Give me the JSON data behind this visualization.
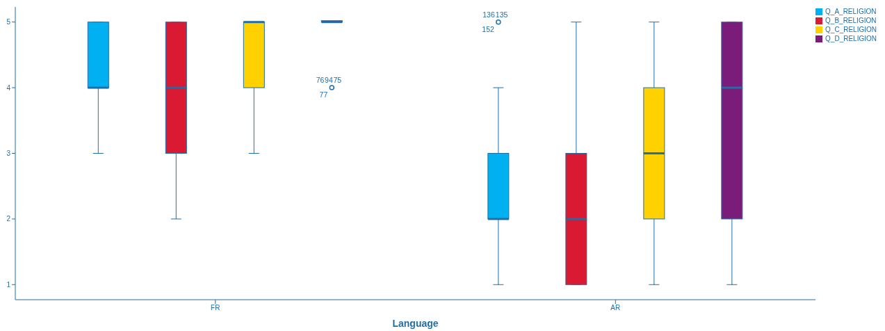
{
  "chart_data": {
    "type": "box",
    "xlabel": "Language",
    "categories": [
      "FR",
      "AR"
    ],
    "ylim": [
      0.77,
      5.23
    ],
    "yticks": [
      1,
      2,
      3,
      4,
      5
    ],
    "legend": "top right",
    "series": [
      {
        "name": "Q_A_RELIGION",
        "color": "#00b0f0",
        "boxes": [
          {
            "low": 3,
            "q1": 4,
            "median": 4,
            "q3": 5,
            "high": 5
          },
          {
            "low": 1,
            "q1": 2,
            "median": 2,
            "q3": 3,
            "high": 4,
            "outliers": [
              5
            ]
          }
        ]
      },
      {
        "name": "Q_B_RELIGION",
        "color": "#da1a32",
        "boxes": [
          {
            "low": 2,
            "q1": 3,
            "median": 4,
            "q3": 5,
            "high": 5
          },
          {
            "low": 1,
            "q1": 1,
            "median": 2,
            "q3": 3,
            "high": 5
          }
        ]
      },
      {
        "name": "Q_C_RELIGION",
        "color": "#ffd100",
        "boxes": [
          {
            "low": 3,
            "q1": 4,
            "median": 5,
            "q3": 5,
            "high": 5
          },
          {
            "low": 1,
            "q1": 2,
            "median": 3,
            "q3": 4,
            "high": 5
          }
        ]
      },
      {
        "name": "Q_D_RELIGION",
        "color": "#7b1c7a",
        "boxes": [
          {
            "low": 5,
            "q1": 5,
            "median": 5,
            "q3": 5,
            "high": 5,
            "outliers": [
              4
            ]
          },
          {
            "low": 1,
            "q1": 2,
            "median": 4,
            "q3": 5,
            "high": 5
          }
        ]
      }
    ],
    "annotations": [
      "76",
      "94",
      "75",
      "77",
      "136",
      "135",
      "152"
    ]
  }
}
